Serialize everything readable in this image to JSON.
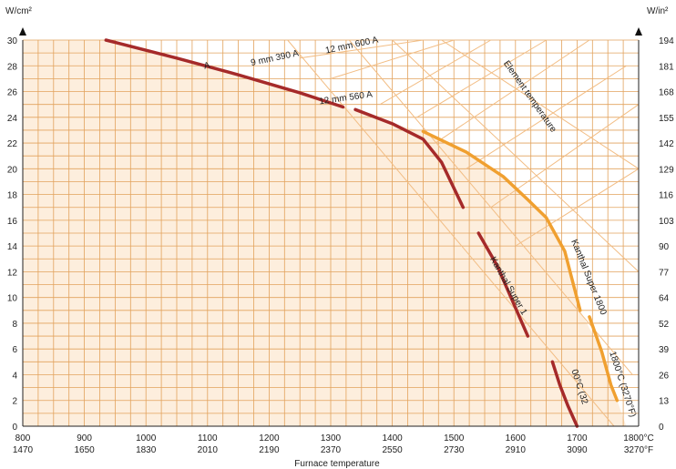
{
  "chart_data": {
    "type": "line",
    "xlabel": "Furnace temperature",
    "ylabel_left": "W/cm²",
    "ylabel_right": "W/in²",
    "xlim": [
      800,
      1800
    ],
    "ylim": [
      0,
      30
    ],
    "x_ticks": [
      {
        "c": "800",
        "f": "1470"
      },
      {
        "c": "900",
        "f": "1650"
      },
      {
        "c": "1000",
        "f": "1830"
      },
      {
        "c": "1100",
        "f": "2010"
      },
      {
        "c": "1200",
        "f": "2190"
      },
      {
        "c": "1300",
        "f": "2370"
      },
      {
        "c": "1400",
        "f": "2550"
      },
      {
        "c": "1500",
        "f": "2730"
      },
      {
        "c": "1600",
        "f": "2910"
      },
      {
        "c": "1700",
        "f": "3090"
      },
      {
        "c": "1800°C",
        "f": "3270°F"
      }
    ],
    "y_ticks_left": [
      "0",
      "2",
      "4",
      "6",
      "8",
      "10",
      "12",
      "14",
      "16",
      "18",
      "20",
      "22",
      "24",
      "26",
      "28",
      "30"
    ],
    "y_ticks_right": [
      "0",
      "13",
      "26",
      "39",
      "52",
      "64",
      "77",
      "90",
      "103",
      "116",
      "129",
      "142",
      "155",
      "168",
      "181",
      "194"
    ],
    "annotations": [
      {
        "text": "12 mm 600 A",
        "x": 1335,
        "y": 29.4,
        "angle": -12
      },
      {
        "text": "9 mm 390 A",
        "x": 1210,
        "y": 28.4,
        "angle": -12
      },
      {
        "text": "A",
        "x": 1100,
        "y": 27.8,
        "angle": -12
      },
      {
        "text": "12 mm 560 A",
        "x": 1325,
        "y": 25.3,
        "angle": -8
      },
      {
        "text": "Element temperature",
        "x": 1620,
        "y": 25.5,
        "angle": 55
      },
      {
        "text": "Kanthal Super 1800",
        "x": 1715,
        "y": 11.5,
        "angle": 68
      },
      {
        "text": "Kanthal Super 1",
        "x": 1585,
        "y": 10.8,
        "angle": 60
      },
      {
        "text": "1800°C (3270°F)",
        "x": 1770,
        "y": 3.2,
        "angle": 72
      },
      {
        "text": "00°C (32",
        "x": 1700,
        "y": 3.0,
        "angle": 72
      }
    ],
    "series": [
      {
        "color": "#a52a2a",
        "x": [
          935,
          1050,
          1150,
          1250,
          1320
        ],
        "y": [
          30.0,
          28.6,
          27.3,
          25.9,
          24.8
        ]
      },
      {
        "color": "#a52a2a",
        "x": [
          1340,
          1400,
          1450,
          1480,
          1515
        ],
        "y": [
          24.6,
          23.5,
          22.3,
          20.5,
          17.0
        ]
      },
      {
        "color": "#a52a2a",
        "x": [
          1540,
          1570,
          1590,
          1620
        ],
        "y": [
          15.0,
          12.5,
          10.3,
          7.0
        ]
      },
      {
        "color": "#a52a2a",
        "x": [
          1660,
          1672,
          1685,
          1700
        ],
        "y": [
          5.0,
          3.2,
          1.6,
          0.0
        ]
      },
      {
        "color": "#f0a030",
        "x": [
          1450,
          1520,
          1580,
          1620,
          1650,
          1680,
          1705
        ],
        "y": [
          22.9,
          21.3,
          19.4,
          17.6,
          16.2,
          13.6,
          9.0
        ]
      },
      {
        "color": "#f0a030",
        "x": [
          1720,
          1740,
          1755,
          1765
        ],
        "y": [
          8.5,
          5.8,
          3.2,
          2.0
        ]
      }
    ]
  }
}
